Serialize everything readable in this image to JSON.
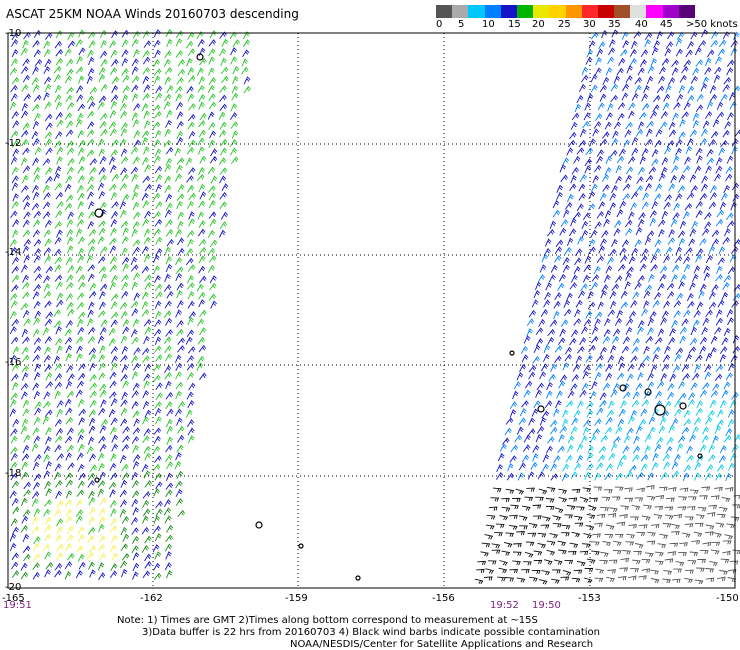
{
  "header": {
    "title": "ASCAT 25KM NOAA Winds 20160703 descending"
  },
  "legend": {
    "labels": [
      "0",
      "5",
      "10",
      "15",
      "20",
      "25",
      "30",
      "35",
      "40",
      "45",
      ">50 knots"
    ],
    "colors": [
      "#444444",
      "#9a9a9a",
      "#00c8ff",
      "#0090ff",
      "#1010c8",
      "#00b000",
      "#50e000",
      "#ffff00",
      "#ffc800",
      "#ff8c00",
      "#ff3030",
      "#d00000",
      "#a05030",
      "#c8c8c8",
      "#ff00ff",
      "#a000c8",
      "#600080"
    ]
  },
  "map": {
    "lat_labels": [
      "-10",
      "-12",
      "-14",
      "-16",
      "-18",
      "-20"
    ],
    "lon_labels": [
      "-165",
      "-162",
      "-159",
      "-156",
      "-153",
      "-150"
    ],
    "time_labels": {
      "left": "19:51",
      "right_a": "19:52",
      "right_b": "19:50"
    }
  },
  "notes": {
    "line1": "Note: 1) Times are GMT 2)Times along bottom correspond to measurement at ~15S",
    "line2": "3)Data buffer is 22 hrs from 20160703 4) Black wind barbs indicate possible contamination",
    "line3": "NOAA/NESDIS/Center for Satellite Applications and Research"
  }
}
